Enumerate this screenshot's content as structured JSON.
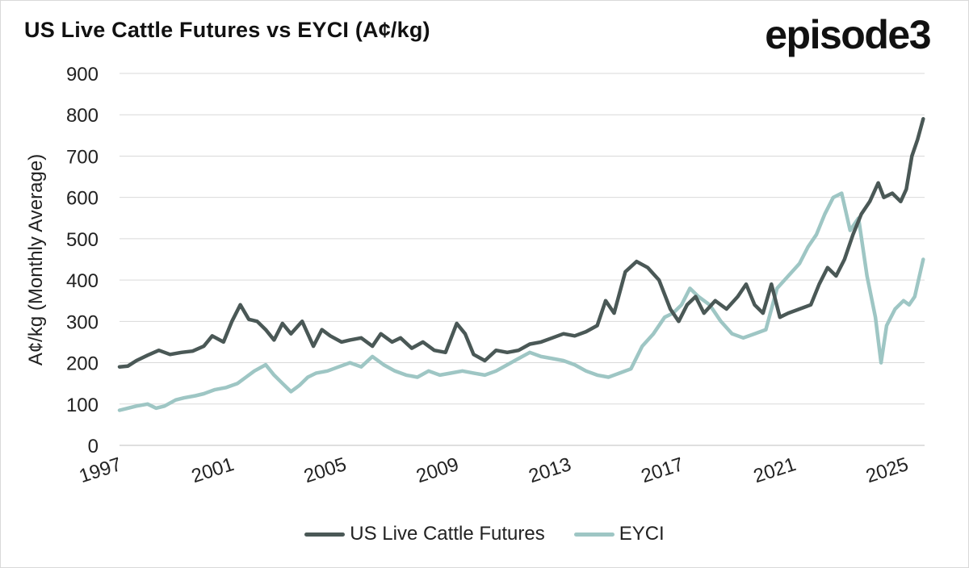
{
  "header": {
    "title": "US Live Cattle Futures vs EYCI (A¢/kg)",
    "brand": "episode3"
  },
  "chart_data": {
    "type": "line",
    "title": "US Live Cattle Futures vs EYCI (A¢/kg)",
    "xlabel": "",
    "ylabel": "A¢/kg (Monthly Average)",
    "xlim": [
      1997.0,
      2025.65
    ],
    "ylim": [
      0,
      900
    ],
    "y_ticks": [
      "0",
      "100",
      "200",
      "300",
      "400",
      "500",
      "600",
      "700",
      "800",
      "900"
    ],
    "x_ticks": [
      "1997",
      "2001",
      "2005",
      "2009",
      "2013",
      "2017",
      "2021",
      "2025"
    ],
    "x_tick_values": [
      1997,
      2001,
      2005,
      2009,
      2013,
      2017,
      2021,
      2025
    ],
    "grid": true,
    "legend_position": "bottom",
    "series": [
      {
        "name": "US Live Cattle Futures",
        "color": "#4a5856",
        "x": [
          1997.0,
          1997.3,
          1997.6,
          1998.0,
          1998.4,
          1998.8,
          1999.2,
          1999.6,
          2000.0,
          2000.3,
          2000.7,
          2001.0,
          2001.3,
          2001.6,
          2001.9,
          2002.2,
          2002.5,
          2002.8,
          2003.1,
          2003.5,
          2003.9,
          2004.2,
          2004.5,
          2004.9,
          2005.2,
          2005.6,
          2006.0,
          2006.3,
          2006.7,
          2007.0,
          2007.4,
          2007.8,
          2008.2,
          2008.6,
          2009.0,
          2009.3,
          2009.6,
          2010.0,
          2010.4,
          2010.8,
          2011.2,
          2011.6,
          2012.0,
          2012.4,
          2012.8,
          2013.2,
          2013.6,
          2014.0,
          2014.3,
          2014.6,
          2015.0,
          2015.4,
          2015.8,
          2016.2,
          2016.6,
          2016.9,
          2017.2,
          2017.5,
          2017.8,
          2018.2,
          2018.6,
          2019.0,
          2019.3,
          2019.6,
          2019.9,
          2020.2,
          2020.5,
          2020.8,
          2021.2,
          2021.6,
          2021.9,
          2022.2,
          2022.5,
          2022.8,
          2023.1,
          2023.4,
          2023.7,
          2024.0,
          2024.2,
          2024.5,
          2024.8,
          2025.0,
          2025.2,
          2025.4,
          2025.6
        ],
        "values": [
          190,
          192,
          205,
          218,
          230,
          220,
          225,
          228,
          240,
          265,
          250,
          300,
          340,
          305,
          300,
          280,
          255,
          295,
          270,
          300,
          240,
          280,
          265,
          250,
          255,
          260,
          240,
          270,
          250,
          260,
          235,
          250,
          230,
          225,
          295,
          270,
          220,
          205,
          230,
          225,
          230,
          245,
          250,
          260,
          270,
          265,
          275,
          290,
          350,
          320,
          420,
          445,
          430,
          400,
          330,
          300,
          340,
          360,
          320,
          350,
          330,
          360,
          390,
          340,
          320,
          390,
          310,
          320,
          330,
          340,
          390,
          430,
          410,
          450,
          510,
          560,
          590,
          635,
          600,
          610,
          590,
          620,
          700,
          740,
          790
        ]
      },
      {
        "name": "EYCI",
        "color": "#9ec6c4",
        "x": [
          1997.0,
          1997.3,
          1997.6,
          1998.0,
          1998.3,
          1998.6,
          1999.0,
          1999.3,
          1999.7,
          2000.0,
          2000.4,
          2000.8,
          2001.2,
          2001.5,
          2001.8,
          2002.2,
          2002.5,
          2002.8,
          2003.1,
          2003.4,
          2003.7,
          2004.0,
          2004.4,
          2004.8,
          2005.2,
          2005.6,
          2006.0,
          2006.4,
          2006.8,
          2007.2,
          2007.6,
          2008.0,
          2008.4,
          2008.8,
          2009.2,
          2009.6,
          2010.0,
          2010.4,
          2010.8,
          2011.2,
          2011.6,
          2012.0,
          2012.4,
          2012.8,
          2013.2,
          2013.6,
          2014.0,
          2014.4,
          2014.8,
          2015.2,
          2015.6,
          2016.0,
          2016.4,
          2016.7,
          2017.0,
          2017.3,
          2017.6,
          2018.0,
          2018.4,
          2018.8,
          2019.2,
          2019.6,
          2020.0,
          2020.4,
          2020.8,
          2021.2,
          2021.5,
          2021.8,
          2022.1,
          2022.4,
          2022.7,
          2023.0,
          2023.3,
          2023.6,
          2023.9,
          2024.1,
          2024.3,
          2024.6,
          2024.9,
          2025.1,
          2025.3,
          2025.6
        ],
        "values": [
          85,
          90,
          95,
          100,
          90,
          95,
          110,
          115,
          120,
          125,
          135,
          140,
          150,
          165,
          180,
          195,
          170,
          150,
          130,
          145,
          165,
          175,
          180,
          190,
          200,
          190,
          215,
          195,
          180,
          170,
          165,
          180,
          170,
          175,
          180,
          175,
          170,
          180,
          195,
          210,
          225,
          215,
          210,
          205,
          195,
          180,
          170,
          165,
          175,
          185,
          240,
          270,
          310,
          320,
          340,
          380,
          360,
          340,
          300,
          270,
          260,
          270,
          280,
          380,
          410,
          440,
          480,
          510,
          560,
          600,
          610,
          520,
          550,
          410,
          310,
          200,
          290,
          330,
          350,
          340,
          360,
          450
        ]
      }
    ]
  }
}
